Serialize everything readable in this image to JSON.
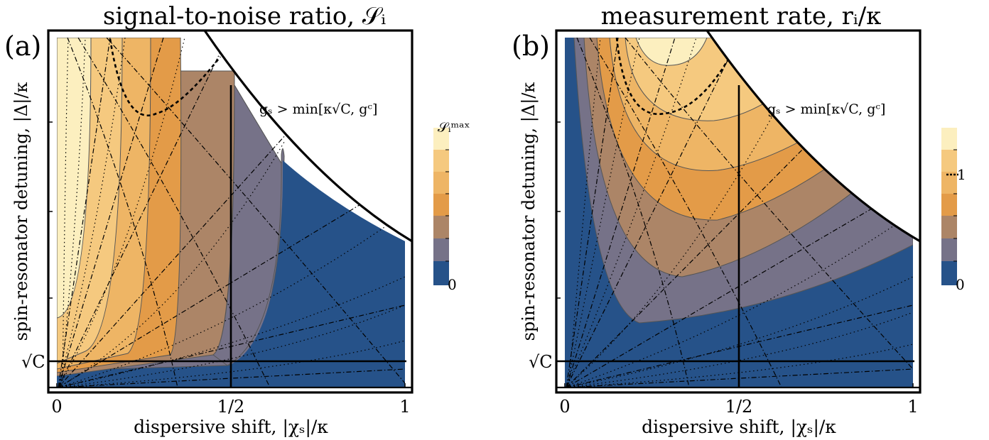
{
  "figure": {
    "panels": [
      {
        "id": "a",
        "letter": "(a)",
        "title": "signal-to-noise ratio, 𝒮ᵢ",
        "xlabel": "dispersive shift, |χₛ|/κ",
        "ylabel": "spin-resonator detuning, |Δ|/κ",
        "x_ticks": [
          "0",
          "1/2",
          "1"
        ],
        "y_marker": "√C",
        "constraint": "gₛ > min[κ√C, gᶜ]",
        "colorbar": {
          "top_label": "𝒮ᵢᵐᵃˣ",
          "bottom_label": "0",
          "marked_label": ""
        }
      },
      {
        "id": "b",
        "letter": "(b)",
        "title": "measurement rate, rᵢ/κ",
        "xlabel": "dispersive shift, |χₛ|/κ",
        "ylabel": "spin-resonator detuning, |Δ|/κ",
        "x_ticks": [
          "0",
          "1/2",
          "1"
        ],
        "y_marker": "√C",
        "constraint": "gₛ > min[κ√C, gᶜ]",
        "colorbar": {
          "top_label": "",
          "bottom_label": "0",
          "marked_label": "1"
        }
      }
    ],
    "colorbar_colors": [
      "#fcefbf",
      "#f5c97f",
      "#eeb565",
      "#e39b48",
      "#ac8567",
      "#767288",
      "#265289"
    ],
    "boundary_color": "#000000"
  }
}
